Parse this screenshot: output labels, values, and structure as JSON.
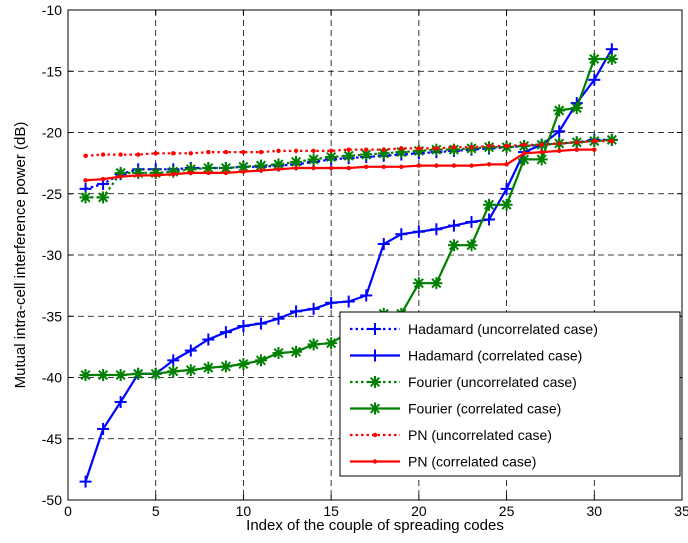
{
  "chart_data": {
    "type": "line",
    "title": "",
    "xlabel": "Index of the couple of spreading codes",
    "ylabel": "Mutual intra-cell interference power (dB)",
    "xlim": [
      0,
      35
    ],
    "ylim": [
      -50,
      -10
    ],
    "xticks": [
      0,
      5,
      10,
      15,
      20,
      25,
      30,
      35
    ],
    "yticks": [
      -50,
      -45,
      -40,
      -35,
      -30,
      -25,
      -20,
      -15,
      -10
    ],
    "grid": true,
    "legend_position": "bottom-right",
    "series": [
      {
        "name": "Hadamard (uncorrelated case)",
        "color": "#0000ff",
        "linestyle": "dotted",
        "marker": "plus",
        "x": [
          1,
          2,
          3,
          4,
          5,
          6,
          7,
          8,
          9,
          10,
          11,
          12,
          13,
          14,
          15,
          16,
          17,
          18,
          19,
          20,
          21,
          22,
          23,
          24,
          25,
          26,
          27,
          28,
          29,
          30,
          31
        ],
        "y": [
          -24.6,
          -24.2,
          -23.4,
          -23.0,
          -23.0,
          -23.0,
          -22.9,
          -22.9,
          -22.9,
          -22.8,
          -22.8,
          -22.7,
          -22.6,
          -22.4,
          -22.2,
          -22.1,
          -22.0,
          -21.9,
          -21.8,
          -21.7,
          -21.6,
          -21.5,
          -21.4,
          -21.3,
          -21.2,
          -21.1,
          -21.0,
          -20.9,
          -20.8,
          -20.6,
          -20.6
        ]
      },
      {
        "name": "Hadamard (correlated case)",
        "color": "#0000ff",
        "linestyle": "solid",
        "marker": "plus",
        "x": [
          1,
          2,
          3,
          4,
          5,
          6,
          7,
          8,
          9,
          10,
          11,
          12,
          13,
          14,
          15,
          16,
          17,
          18,
          19,
          20,
          21,
          22,
          23,
          24,
          25,
          26,
          27,
          28,
          29,
          30,
          31
        ],
        "y": [
          -48.5,
          -44.2,
          -42.0,
          -39.7,
          -39.7,
          -38.6,
          -37.8,
          -36.9,
          -36.3,
          -35.8,
          -35.6,
          -35.2,
          -34.6,
          -34.4,
          -33.9,
          -33.8,
          -33.3,
          -29.1,
          -28.3,
          -28.1,
          -27.9,
          -27.6,
          -27.3,
          -27.1,
          -24.6,
          -21.6,
          -21.0,
          -19.9,
          -17.6,
          -15.7,
          -13.2
        ]
      },
      {
        "name": "Fourier (uncorrelated case)",
        "color": "#008000",
        "linestyle": "dotted",
        "marker": "star",
        "x": [
          1,
          2,
          3,
          4,
          5,
          6,
          7,
          8,
          9,
          10,
          11,
          12,
          13,
          14,
          15,
          16,
          17,
          18,
          19,
          20,
          21,
          22,
          23,
          24,
          25,
          26,
          27,
          28,
          29,
          30,
          31
        ],
        "y": [
          -25.3,
          -25.3,
          -23.3,
          -23.3,
          -23.3,
          -23.2,
          -23.0,
          -22.9,
          -22.9,
          -22.8,
          -22.7,
          -22.6,
          -22.4,
          -22.2,
          -22.0,
          -21.9,
          -21.8,
          -21.7,
          -21.6,
          -21.5,
          -21.4,
          -21.4,
          -21.3,
          -21.2,
          -21.2,
          -21.1,
          -21.0,
          -20.9,
          -20.8,
          -20.7,
          -20.6
        ]
      },
      {
        "name": "Fourier (correlated case)",
        "color": "#008000",
        "linestyle": "solid",
        "marker": "star",
        "x": [
          1,
          2,
          3,
          4,
          5,
          6,
          7,
          8,
          9,
          10,
          11,
          12,
          13,
          14,
          15,
          16,
          17,
          18,
          19,
          20,
          21,
          22,
          23,
          24,
          25,
          26,
          27,
          28,
          29,
          30,
          31
        ],
        "y": [
          -39.8,
          -39.8,
          -39.8,
          -39.7,
          -39.7,
          -39.5,
          -39.4,
          -39.2,
          -39.1,
          -38.9,
          -38.6,
          -38.0,
          -37.9,
          -37.3,
          -37.2,
          -36.3,
          -35.6,
          -34.8,
          -34.8,
          -32.3,
          -32.3,
          -29.2,
          -29.2,
          -25.9,
          -25.9,
          -22.2,
          -22.2,
          -18.2,
          -18.0,
          -14.0,
          -14.0
        ]
      },
      {
        "name": "PN (uncorrelated case)",
        "color": "#ff0000",
        "linestyle": "dotted",
        "marker": "dot",
        "x": [
          1,
          2,
          3,
          4,
          5,
          6,
          7,
          8,
          9,
          10,
          11,
          12,
          13,
          14,
          15,
          16,
          17,
          18,
          19,
          20,
          21,
          22,
          23,
          24,
          25,
          26,
          27,
          28,
          29,
          30,
          31
        ],
        "y": [
          -21.9,
          -21.8,
          -21.8,
          -21.8,
          -21.7,
          -21.7,
          -21.7,
          -21.6,
          -21.6,
          -21.6,
          -21.6,
          -21.5,
          -21.5,
          -21.5,
          -21.5,
          -21.4,
          -21.4,
          -21.4,
          -21.3,
          -21.3,
          -21.3,
          -21.2,
          -21.2,
          -21.1,
          -21.1,
          -21.0,
          -21.0,
          -20.9,
          -20.8,
          -20.7,
          -20.7
        ]
      },
      {
        "name": "PN (correlated case)",
        "color": "#ff0000",
        "linestyle": "solid",
        "marker": "dot",
        "x": [
          1,
          2,
          3,
          4,
          5,
          6,
          7,
          8,
          9,
          10,
          11,
          12,
          13,
          14,
          15,
          16,
          17,
          18,
          19,
          20,
          21,
          22,
          23,
          24,
          25,
          26,
          27,
          28,
          29,
          30
        ],
        "y": [
          -23.9,
          -23.8,
          -23.6,
          -23.5,
          -23.5,
          -23.4,
          -23.3,
          -23.3,
          -23.3,
          -23.2,
          -23.1,
          -23.0,
          -22.9,
          -22.9,
          -22.9,
          -22.9,
          -22.8,
          -22.8,
          -22.8,
          -22.7,
          -22.7,
          -22.7,
          -22.7,
          -22.6,
          -22.6,
          -21.7,
          -21.6,
          -21.5,
          -21.4,
          -21.4
        ]
      }
    ]
  }
}
